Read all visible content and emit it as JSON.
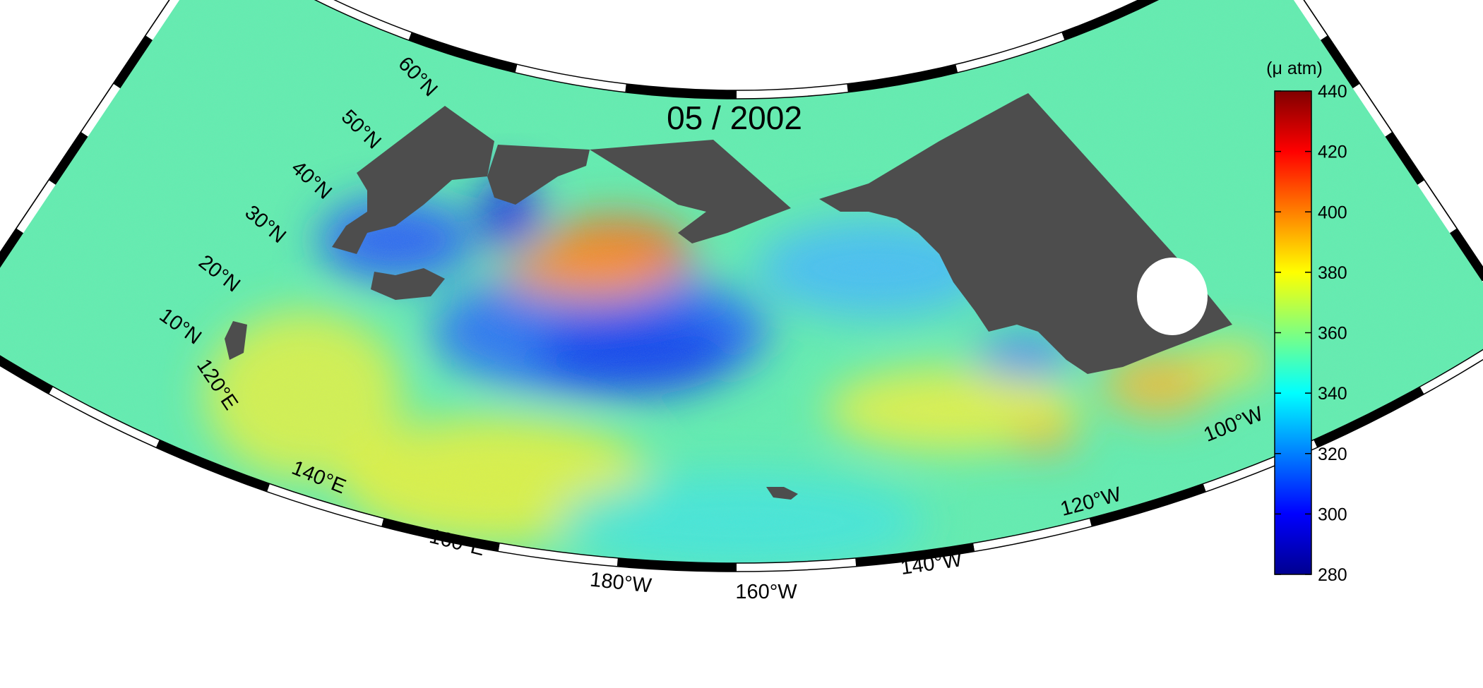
{
  "title": "05 / 2002",
  "map": {
    "projection": "conic",
    "lat_range": [
      10,
      60
    ],
    "lon_range": [
      "120°E",
      "100°W"
    ],
    "land_color": "#4d4d4d",
    "missing_data_color": "#ffffff",
    "lat_labels": [
      "10°N",
      "20°N",
      "30°N",
      "40°N",
      "50°N",
      "60°N"
    ],
    "lon_labels": [
      "120°E",
      "140°E",
      "160°E",
      "180°W",
      "160°W",
      "140°W",
      "120°W",
      "100°W"
    ]
  },
  "colorbar": {
    "unit": "(μ atm)",
    "min": 280,
    "max": 440,
    "colormap": "jet",
    "ticks": [
      "280",
      "300",
      "320",
      "340",
      "360",
      "380",
      "400",
      "420",
      "440"
    ]
  }
}
